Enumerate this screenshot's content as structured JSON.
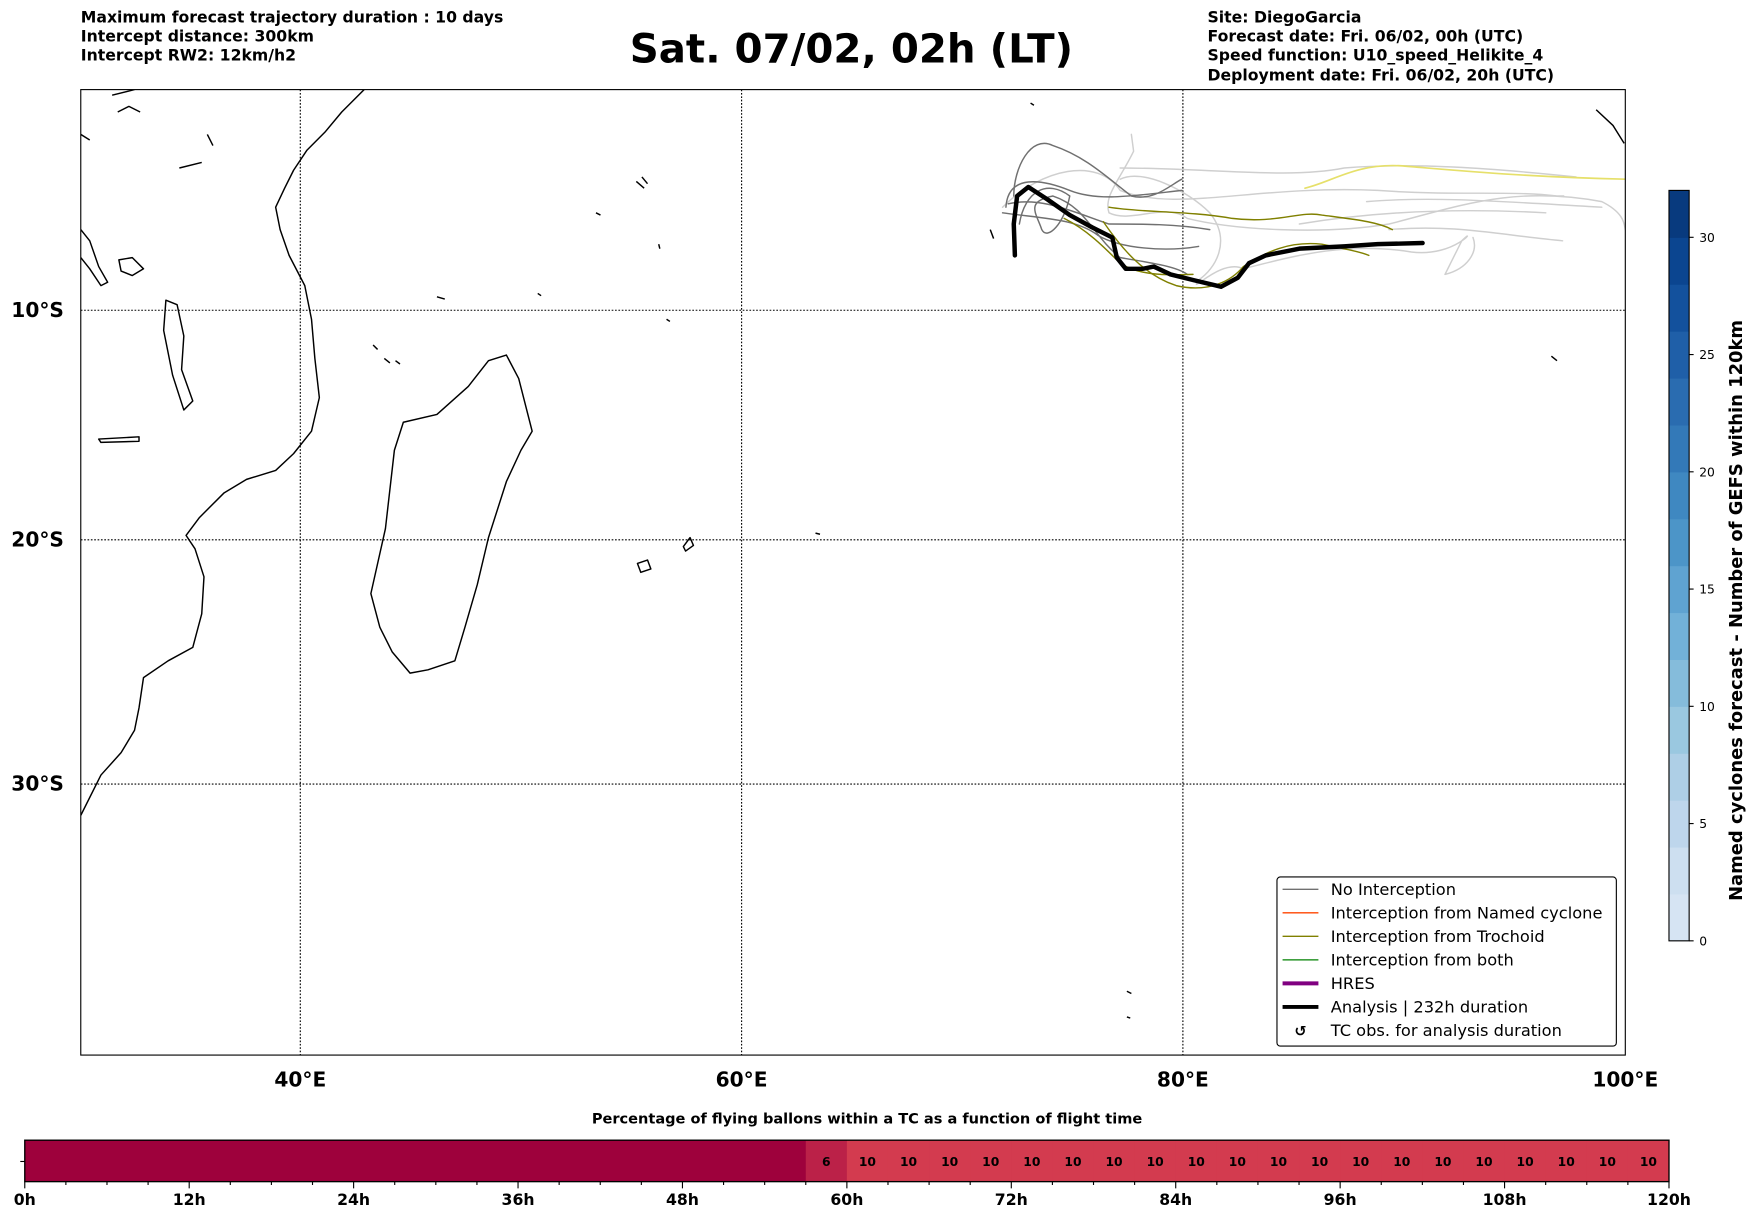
{
  "header": {
    "left": [
      "Maximum forecast trajectory duration : 10 days",
      "Intercept distance: 300km",
      "Intercept RW2: 12km/h2"
    ],
    "title": "Sat. 07/02, 02h (LT)",
    "right": [
      "Site: DiegoGarcia",
      "Forecast date: Fri. 06/02, 00h (UTC)",
      "Speed function: U10_speed_Helikite_4",
      "Deployment date: Fri. 06/02, 20h (UTC)"
    ]
  },
  "map": {
    "lon_labels": [
      "40°E",
      "60°E",
      "80°E",
      "100°E"
    ],
    "lat_labels": [
      "10°S",
      "20°S",
      "30°S"
    ]
  },
  "legend": {
    "items": [
      {
        "label": "No Interception",
        "color": "#707070",
        "style": "thin"
      },
      {
        "label": "Interception from Named cyclone",
        "color": "#ff4500",
        "style": "thin"
      },
      {
        "label": "Interception from Trochoid",
        "color": "#808000",
        "style": "thin"
      },
      {
        "label": "Interception from both",
        "color": "#008000",
        "style": "thin"
      },
      {
        "label": "HRES",
        "color": "#800080",
        "style": "thick"
      },
      {
        "label": "Analysis | 232h duration",
        "color": "#000000",
        "style": "thick"
      },
      {
        "label": "TC obs. for analysis duration",
        "color": "#000000",
        "style": "marker",
        "icon": "↺"
      }
    ]
  },
  "colorbar": {
    "label": "Named cyclones forecast - Number of GEFS within 120km",
    "min": 0,
    "max": 32,
    "step": 2,
    "ticks": [
      "0",
      "5",
      "10",
      "15",
      "20",
      "25",
      "30"
    ],
    "colors": [
      "#d6e4f3",
      "#cddff0",
      "#bed6ec",
      "#aecfe6",
      "#9ac8e0",
      "#85bcdb",
      "#72b1d8",
      "#5fa3d1",
      "#4c95c8",
      "#3f88c1",
      "#3379b8",
      "#2a6cb0",
      "#1f5fa8",
      "#13519d",
      "#0b4590",
      "#083a7e"
    ]
  },
  "chart_data": {
    "type": "bar",
    "title": "Percentage of flying ballons within a TC as a function of flight time",
    "xlabel": "",
    "ylabel": "",
    "xlim": [
      0,
      120
    ],
    "tick_labels": [
      "0h",
      "12h",
      "24h",
      "36h",
      "48h",
      "60h",
      "72h",
      "84h",
      "96h",
      "108h",
      "120h"
    ],
    "segments": [
      {
        "start": 0,
        "end": 57,
        "value": null,
        "label": "",
        "color": "#9e013c"
      },
      {
        "start": 57,
        "end": 60,
        "value": 6,
        "label": "6",
        "color": "#bb2148"
      },
      {
        "start": 60,
        "end": 63,
        "value": 10,
        "label": "10",
        "color": "#d33b4f"
      },
      {
        "start": 63,
        "end": 66,
        "value": 10,
        "label": "10",
        "color": "#d33b4f"
      },
      {
        "start": 66,
        "end": 69,
        "value": 10,
        "label": "10",
        "color": "#d33b4f"
      },
      {
        "start": 69,
        "end": 72,
        "value": 10,
        "label": "10",
        "color": "#d33b4f"
      },
      {
        "start": 72,
        "end": 75,
        "value": 10,
        "label": "10",
        "color": "#d33b4f"
      },
      {
        "start": 75,
        "end": 78,
        "value": 10,
        "label": "10",
        "color": "#d33b4f"
      },
      {
        "start": 78,
        "end": 81,
        "value": 10,
        "label": "10",
        "color": "#d33b4f"
      },
      {
        "start": 81,
        "end": 84,
        "value": 10,
        "label": "10",
        "color": "#d33b4f"
      },
      {
        "start": 84,
        "end": 87,
        "value": 10,
        "label": "10",
        "color": "#d33b4f"
      },
      {
        "start": 87,
        "end": 90,
        "value": 10,
        "label": "10",
        "color": "#d33b4f"
      },
      {
        "start": 90,
        "end": 93,
        "value": 10,
        "label": "10",
        "color": "#d33b4f"
      },
      {
        "start": 93,
        "end": 96,
        "value": 10,
        "label": "10",
        "color": "#d33b4f"
      },
      {
        "start": 96,
        "end": 99,
        "value": 10,
        "label": "10",
        "color": "#d33b4f"
      },
      {
        "start": 99,
        "end": 102,
        "value": 10,
        "label": "10",
        "color": "#d33b4f"
      },
      {
        "start": 102,
        "end": 105,
        "value": 10,
        "label": "10",
        "color": "#d33b4f"
      },
      {
        "start": 105,
        "end": 108,
        "value": 10,
        "label": "10",
        "color": "#d33b4f"
      },
      {
        "start": 108,
        "end": 111,
        "value": 10,
        "label": "10",
        "color": "#d33b4f"
      },
      {
        "start": 111,
        "end": 114,
        "value": 10,
        "label": "10",
        "color": "#d33b4f"
      },
      {
        "start": 114,
        "end": 117,
        "value": 10,
        "label": "10",
        "color": "#d33b4f"
      },
      {
        "start": 117,
        "end": 120,
        "value": 10,
        "label": "10",
        "color": "#d33b4f"
      }
    ]
  }
}
